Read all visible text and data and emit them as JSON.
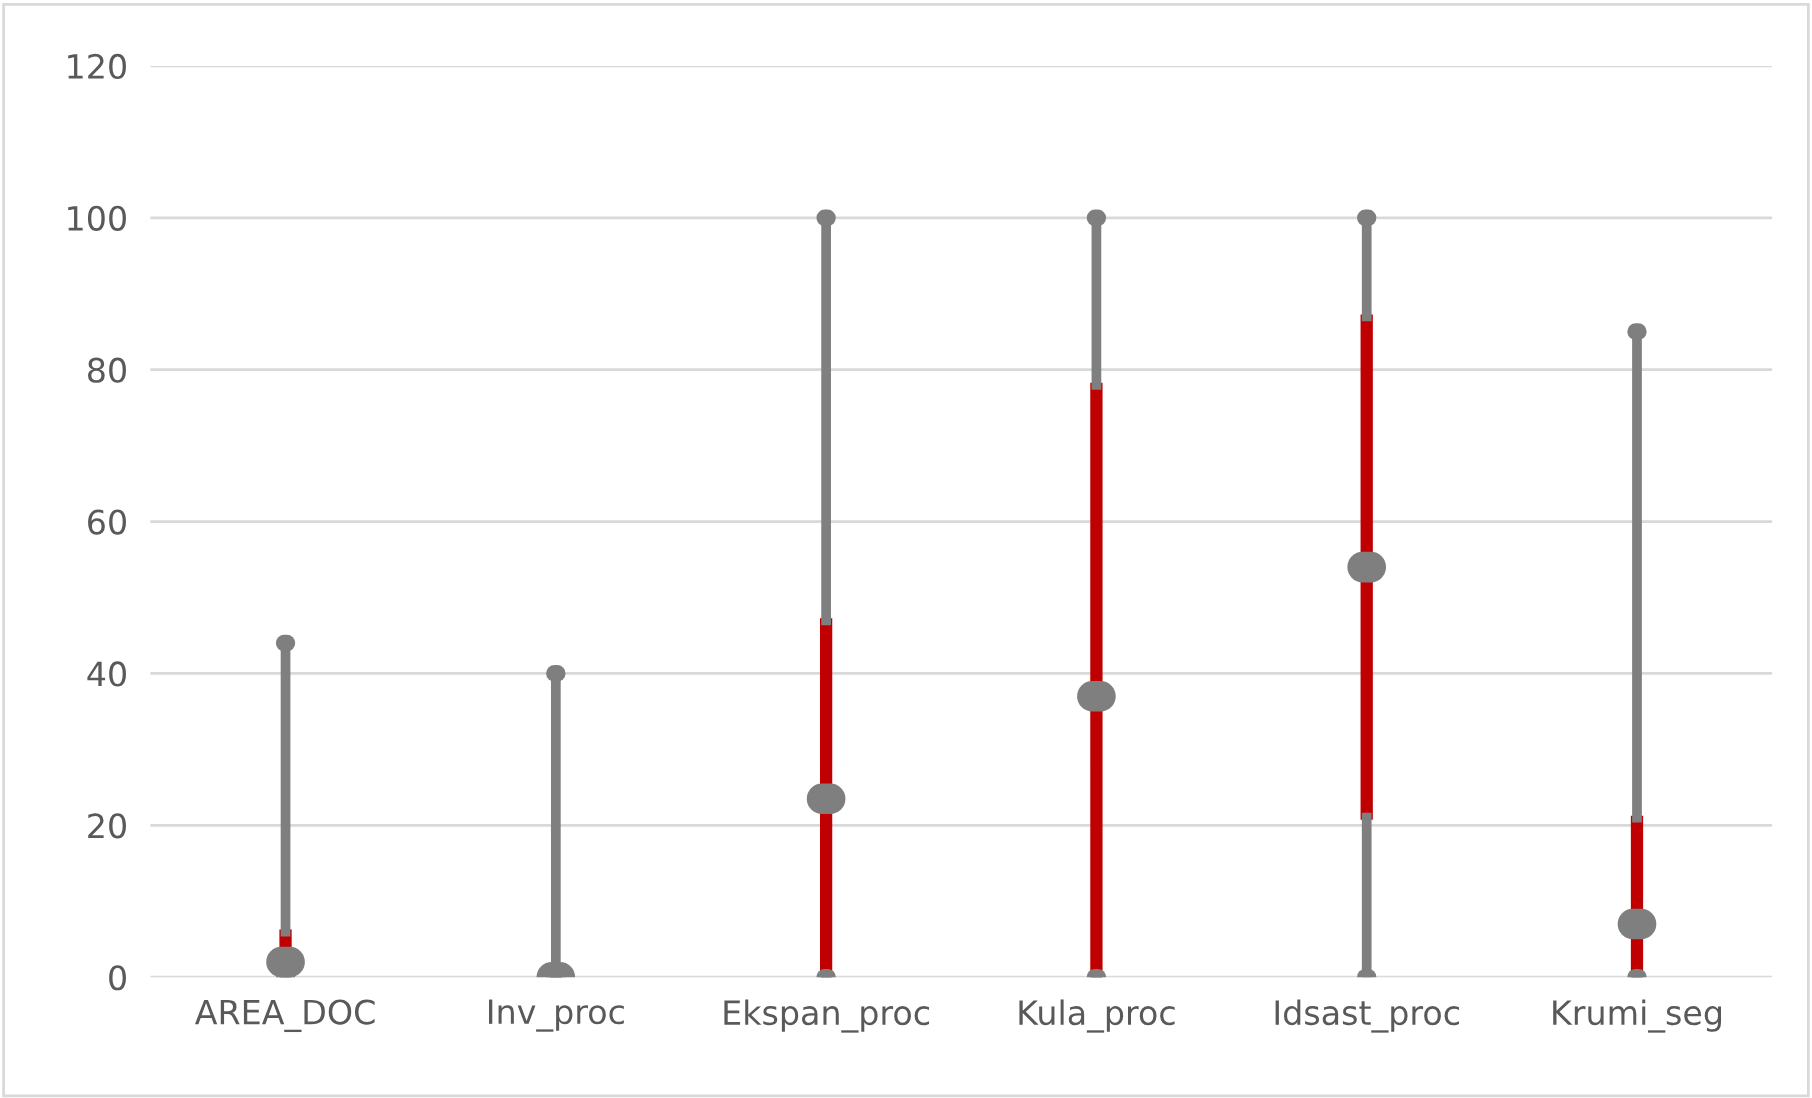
{
  "chart_data": {
    "type": "box",
    "categories": [
      "AREA_DOC",
      "Inv_proc",
      "Ekspan_proc",
      "Kula_proc",
      "Idsast_proc",
      "Krumi_seg"
    ],
    "boxes": [
      {
        "low": 0,
        "q1": 0,
        "median": 2,
        "q3": 6,
        "high": 44
      },
      {
        "low": 0,
        "q1": 0,
        "median": 0,
        "q3": 1,
        "high": 40
      },
      {
        "low": 0,
        "q1": 0,
        "median": 23.5,
        "q3": 47,
        "high": 100
      },
      {
        "low": 0,
        "q1": 0,
        "median": 37,
        "q3": 78,
        "high": 100
      },
      {
        "low": 0,
        "q1": 21,
        "median": 54,
        "q3": 87,
        "high": 100
      },
      {
        "low": 0,
        "q1": 0,
        "median": 7,
        "q3": 21,
        "high": 85
      }
    ],
    "color": "#7f7f7f",
    "colors": [
      "#c00000",
      "#c00000",
      "#c00000",
      "#c00000",
      "#c00000",
      "#c00000"
    ],
    "ylim": [
      0,
      120
    ],
    "yticks": [
      0,
      20,
      40,
      60,
      80,
      100,
      120
    ],
    "grid": "y"
  }
}
